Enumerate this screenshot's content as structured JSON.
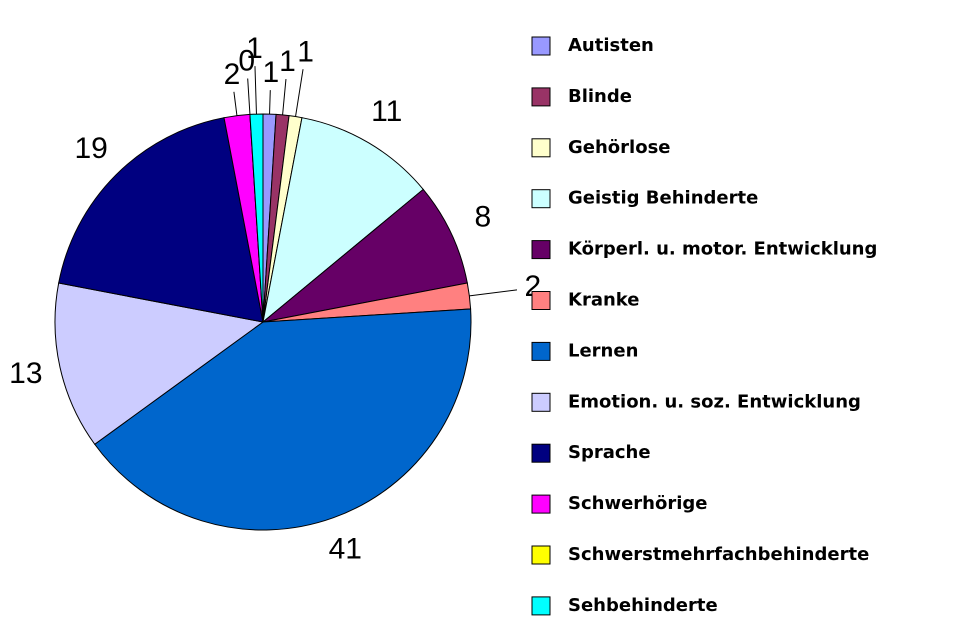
{
  "chart_data": {
    "type": "pie",
    "categories": [
      "Autisten",
      "Blinde",
      "Gehörlose",
      "Geistig Behinderte",
      "Körperl. u. motor. Entwicklung",
      "Kranke",
      "Lernen",
      "Emotion. u. soz. Entwicklung",
      "Sprache",
      "Schwerhörige",
      "Schwerstmehrfachbehinderte",
      "Sehbehinderte"
    ],
    "values": [
      1,
      1,
      1,
      11,
      8,
      2,
      41,
      13,
      19,
      2,
      0,
      1
    ],
    "colors": [
      "#9999ff",
      "#993366",
      "#ffffcc",
      "#ccffff",
      "#660066",
      "#ff8080",
      "#0066cc",
      "#ccccff",
      "#000080",
      "#ff00ff",
      "#ffff00",
      "#00ffff"
    ],
    "legend": "right"
  }
}
